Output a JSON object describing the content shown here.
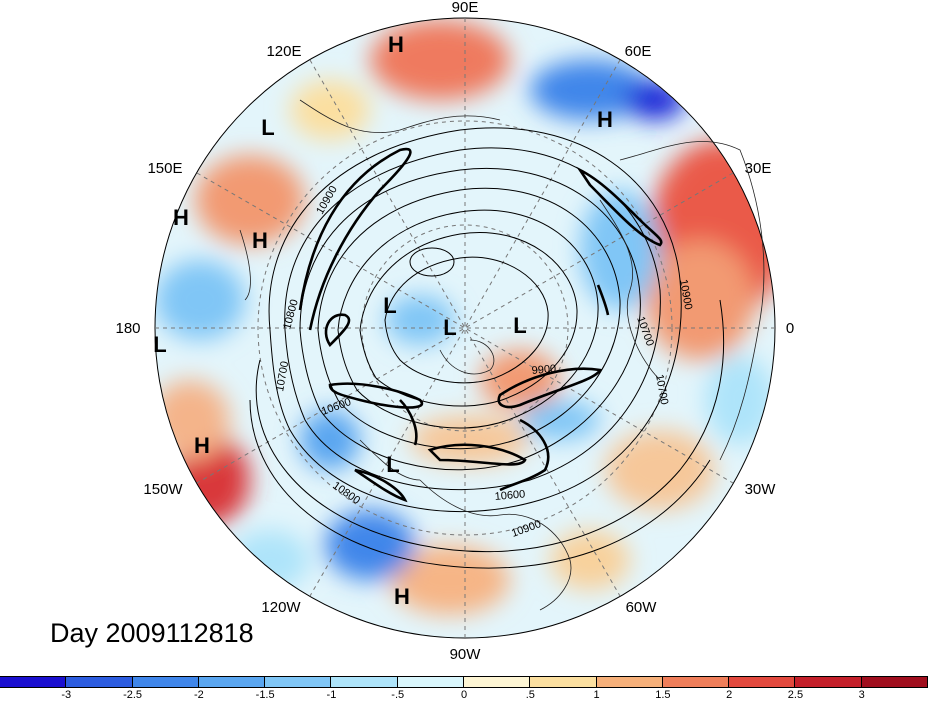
{
  "title": "Day 2009112818",
  "longitude_labels": {
    "lon_90e": "90E",
    "lon_60e": "60E",
    "lon_120e": "120E",
    "lon_30e": "30E",
    "lon_150e": "150E",
    "lon_0": "0",
    "lon_180": "180",
    "lon_30w": "30W",
    "lon_150w": "150W",
    "lon_60w": "60W",
    "lon_120w": "120W",
    "lon_90w": "90W"
  },
  "pressure_markers": [
    {
      "id": "h1",
      "text": "H"
    },
    {
      "id": "h2",
      "text": "H"
    },
    {
      "id": "l1",
      "text": "L"
    },
    {
      "id": "h3",
      "text": "H"
    },
    {
      "id": "h4",
      "text": "H"
    },
    {
      "id": "l2",
      "text": "L"
    },
    {
      "id": "l3",
      "text": "L"
    },
    {
      "id": "l4",
      "text": "L"
    },
    {
      "id": "l5",
      "text": "L"
    },
    {
      "id": "h5",
      "text": "H"
    },
    {
      "id": "l6",
      "text": "L"
    },
    {
      "id": "h6",
      "text": "H"
    }
  ],
  "contour_labels": [
    "10900",
    "10800",
    "10700",
    "10600",
    "10900",
    "10700",
    "10700",
    "9900",
    "10600",
    "10800",
    "10900"
  ],
  "colorbar": {
    "labels": [
      "-3",
      "-2.5",
      "-2",
      "-1.5",
      "-1",
      "-.5",
      "0",
      ".5",
      "1",
      "1.5",
      "2",
      "2.5",
      "3"
    ],
    "colors": [
      "#1a0fd0",
      "#2c5ce0",
      "#3f86ea",
      "#5aa6f0",
      "#80c6f6",
      "#aee4fa",
      "#d9f6fc",
      "#fdf5d4",
      "#fbdfa0",
      "#f6b07a",
      "#ef7e5a",
      "#e2493e",
      "#c41f2a",
      "#a00e1e"
    ]
  }
}
